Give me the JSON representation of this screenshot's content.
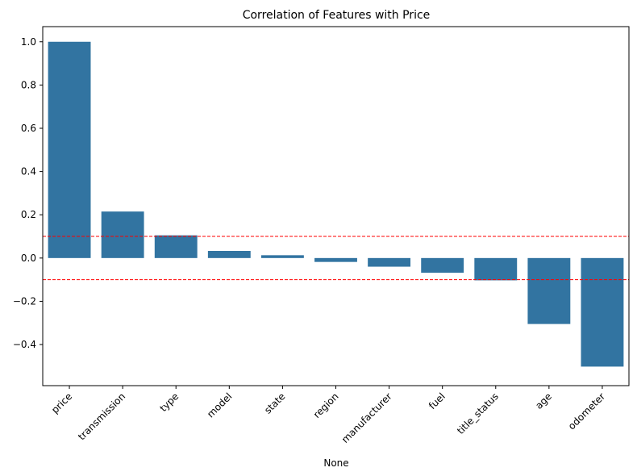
{
  "chart_data": {
    "type": "bar",
    "title": "Correlation of Features with Price",
    "xlabel": "None",
    "ylabel": "",
    "categories": [
      "price",
      "transmission",
      "type",
      "model",
      "state",
      "region",
      "manufacturer",
      "fuel",
      "title_status",
      "age",
      "odometer"
    ],
    "values": [
      1.0,
      0.215,
      0.105,
      0.033,
      0.013,
      -0.018,
      -0.04,
      -0.068,
      -0.103,
      -0.305,
      -0.502
    ],
    "ylim": [
      -0.59,
      1.07
    ],
    "yticks": [
      -0.4,
      -0.2,
      0.0,
      0.2,
      0.4,
      0.6,
      0.8,
      1.0
    ],
    "ytick_labels": [
      "−0.4",
      "−0.2",
      "0.0",
      "0.2",
      "0.4",
      "0.6",
      "0.8",
      "1.0"
    ],
    "reference_lines": [
      0.1,
      -0.1
    ],
    "reference_line_color": "#ff0000",
    "bar_color": "#3274a1",
    "grid": false,
    "legend": "none"
  }
}
